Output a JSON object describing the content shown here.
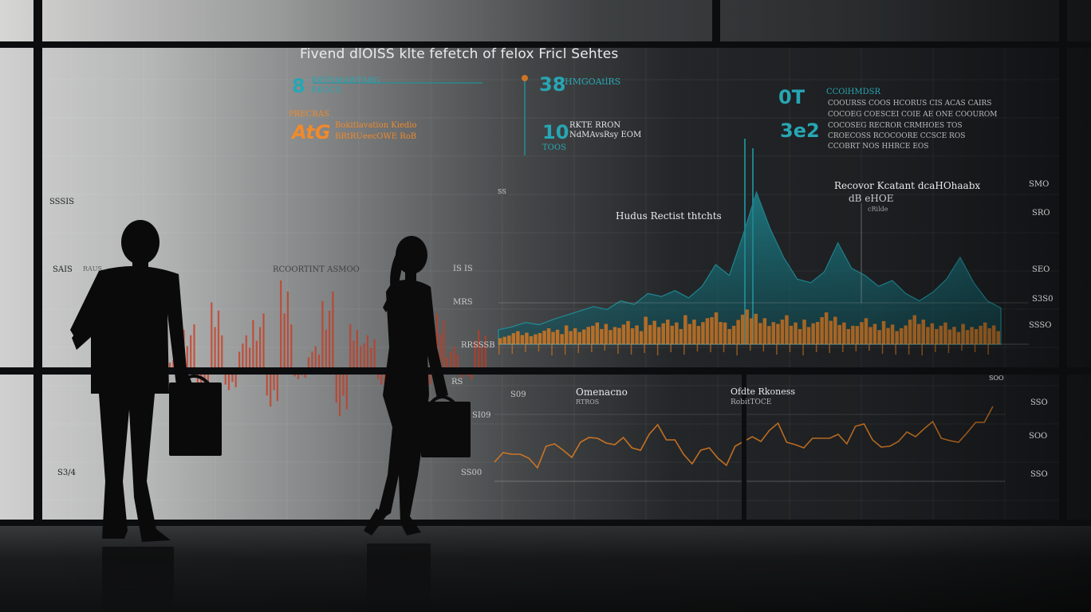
{
  "dashboard": {
    "title": "Fivend dlOISS klte fefetch of felox Fricl Sehtes",
    "kpis": [
      {
        "value": "8",
        "label_1": "RRTNMAWTARG",
        "label_2": "RKOCS"
      },
      {
        "value": "AtG",
        "label_1": "Bokitlavation Kiedio",
        "label_2": "BRtRUeecOWE RoB"
      },
      {
        "value": "38",
        "label_1": "HMGOAtlRS",
        "label_2": ""
      },
      {
        "value": "10",
        "label_1": "RKTE RRON",
        "label_2": "NdMAvsRsy EOM"
      },
      {
        "value": "0T",
        "label_1": "CCOlHMDSR",
        "label_2": ""
      },
      {
        "value": "3e2",
        "label_1": "",
        "label_2": ""
      }
    ],
    "kpi_sub_orange": "PRECRAS",
    "kpi_sub_10": "TOOS",
    "right_notes": [
      "COOURSS COOS HCORUS CIS ACAS CAIRS",
      "COCOEG COESCEI COIE AE ONE COOUROM",
      "COCOSEG RECROR CRMHOES TOS",
      "CROECOSS RCOCOORE CCSCE ROS",
      "CCOBRT NOS HHRCE EOS"
    ],
    "annotation_main": "Recovor Kcatant dcaHOhaabx",
    "annotation_main_sub": "dB eHOE",
    "annotation_main_sub2": "cRilde",
    "annotation_chart": "Hudus Rectist thtchts",
    "annotation_lower_left": "Omenacno",
    "annotation_lower_left_sub": "RTROS",
    "annotation_lower_right": "Ofdte Rkoness",
    "annotation_lower_right_sub": "RobitTOCE",
    "axis_left": [
      "SSSIS",
      "SAIS",
      "S3/4"
    ],
    "axis_mid": [
      "SS",
      "IS IS",
      "MRS",
      "RRSSSB",
      "RS",
      "S09",
      "SI09",
      "SS00"
    ],
    "axis_right": [
      "SMO",
      "SRO",
      "SEO",
      "S3S0",
      "SSSO",
      "SOO",
      "SSO",
      "SOO",
      "SSO"
    ],
    "tiny_left": "RAUS",
    "tiny_bar": "RCOORTINT ASMOO"
  },
  "colors": {
    "teal": "#27a6b3",
    "orange": "#f08a2b",
    "red": "#d2482e",
    "background_dark": "#1f2226",
    "background_light": "#cfd0cf"
  },
  "chart_data": [
    {
      "type": "area",
      "series": [
        {
          "values": [
            20,
            24,
            30,
            27,
            34,
            40,
            46,
            52,
            48,
            60,
            55,
            70,
            66,
            74,
            64,
            80,
            110,
            95,
            150,
            210,
            160,
            120,
            90,
            85,
            100,
            140,
            105,
            95,
            80,
            88,
            70,
            60,
            72,
            90,
            120,
            85,
            60,
            50
          ]
        },
        {
          "values": [
            12,
            18,
            16,
            22,
            20,
            26,
            24,
            30,
            28,
            32,
            26,
            38,
            34,
            30,
            40,
            36,
            44,
            30,
            48,
            42,
            36,
            40,
            30,
            34,
            44,
            38,
            30,
            36,
            28,
            32,
            26,
            40,
            34,
            30,
            24,
            28,
            30,
            26
          ]
        }
      ]
    },
    {
      "type": "line",
      "series": [
        {
          "values": [
            10,
            40,
            -30,
            60,
            -20,
            30,
            50,
            -40,
            80,
            -10,
            20,
            70,
            -50,
            40,
            30,
            -20,
            60,
            10,
            -30,
            50,
            20,
            -10,
            40
          ]
        }
      ]
    },
    {
      "type": "line",
      "series": [
        {
          "values": [
            20,
            30,
            25,
            40,
            35,
            45,
            50,
            42,
            38,
            55,
            48,
            30,
            35,
            25,
            40,
            52,
            60,
            45,
            38,
            50,
            55,
            65,
            48,
            40,
            58,
            62,
            50,
            45,
            70,
            90
          ]
        }
      ]
    }
  ]
}
